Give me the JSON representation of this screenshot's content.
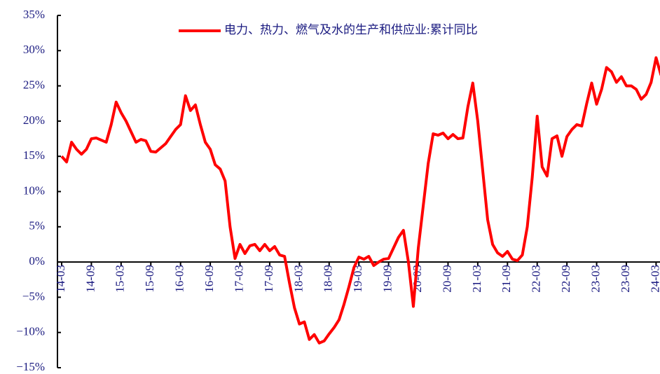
{
  "chart_data": {
    "type": "line",
    "categories": [
      "14-03",
      null,
      null,
      null,
      null,
      null,
      "14-09",
      null,
      null,
      null,
      null,
      null,
      "15-03",
      null,
      null,
      null,
      null,
      null,
      "15-09",
      null,
      null,
      null,
      null,
      null,
      "16-03",
      null,
      null,
      null,
      null,
      null,
      "16-09",
      null,
      null,
      null,
      null,
      null,
      "17-03",
      null,
      null,
      null,
      null,
      null,
      "17-09",
      null,
      null,
      null,
      null,
      null,
      "18-03",
      null,
      null,
      null,
      null,
      null,
      "18-09",
      null,
      null,
      null,
      null,
      null,
      "19-03",
      null,
      null,
      null,
      null,
      null,
      "19-09",
      null,
      null,
      null,
      null,
      null,
      "20-03",
      null,
      null,
      null,
      null,
      null,
      "20-09",
      null,
      null,
      null,
      null,
      null,
      "21-03",
      null,
      null,
      null,
      null,
      null,
      "21-09",
      null,
      null,
      null,
      null,
      null,
      "22-03",
      null,
      null,
      null,
      null,
      null,
      "22-09",
      null,
      null,
      null,
      null,
      null,
      "23-03",
      null,
      null,
      null,
      null,
      null,
      "23-09",
      null,
      null,
      null,
      null,
      null,
      "24-03",
      null
    ],
    "series": [
      {
        "name": "电力、热力、燃气及水的生产和供应业:累计同比",
        "color": "#ff0000",
        "values": [
          15,
          14.2,
          17,
          16,
          15.3,
          16,
          17.5,
          17.6,
          17.3,
          17,
          19.5,
          22.7,
          21.2,
          20,
          18.5,
          17,
          17.4,
          17.2,
          15.7,
          15.6,
          16.2,
          16.8,
          17.8,
          18.8,
          19.5,
          23.6,
          21.5,
          22.3,
          19.5,
          17,
          16,
          13.8,
          13.2,
          11.5,
          5,
          0.5,
          2.5,
          1.2,
          2.3,
          2.5,
          1.6,
          2.5,
          1.6,
          2.2,
          1,
          0.8,
          -3,
          -6.5,
          -8.8,
          -8.5,
          -11,
          -10.3,
          -11.5,
          -11.2,
          -10.2,
          -9.3,
          -8.2,
          -6,
          -3.5,
          -0.8,
          0.7,
          0.4,
          0.8,
          -0.5,
          0,
          0.4,
          0.5,
          2,
          3.5,
          4.5,
          0,
          -6.3,
          2,
          8,
          14,
          18.2,
          18,
          18.3,
          17.5,
          18.1,
          17.5,
          17.6,
          22,
          25.4,
          20,
          13,
          6,
          2.5,
          1.3,
          0.8,
          1.5,
          0.4,
          0.2,
          1,
          5,
          12,
          20.7,
          13.5,
          12.2,
          17.5,
          17.9,
          15,
          17.8,
          18.8,
          19.5,
          19.3,
          22.5,
          25.4,
          22.4,
          24.5,
          27.6,
          27,
          25.5,
          26.3,
          25,
          25,
          24.5,
          23.1,
          23.8,
          25.5,
          29,
          26.5
        ]
      }
    ],
    "ylim": [
      -15,
      35
    ],
    "yticks": [
      {
        "value": -15,
        "label": "−15%"
      },
      {
        "value": -10,
        "label": "−10%"
      },
      {
        "value": -5,
        "label": "−5%"
      },
      {
        "value": 0,
        "label": "0%"
      },
      {
        "value": 5,
        "label": "5%"
      },
      {
        "value": 10,
        "label": "10%"
      },
      {
        "value": 15,
        "label": "15%"
      },
      {
        "value": 20,
        "label": "20%"
      },
      {
        "value": 25,
        "label": "25%"
      },
      {
        "value": 30,
        "label": "30%"
      },
      {
        "value": 35,
        "label": "35%"
      }
    ],
    "legend": "top"
  }
}
